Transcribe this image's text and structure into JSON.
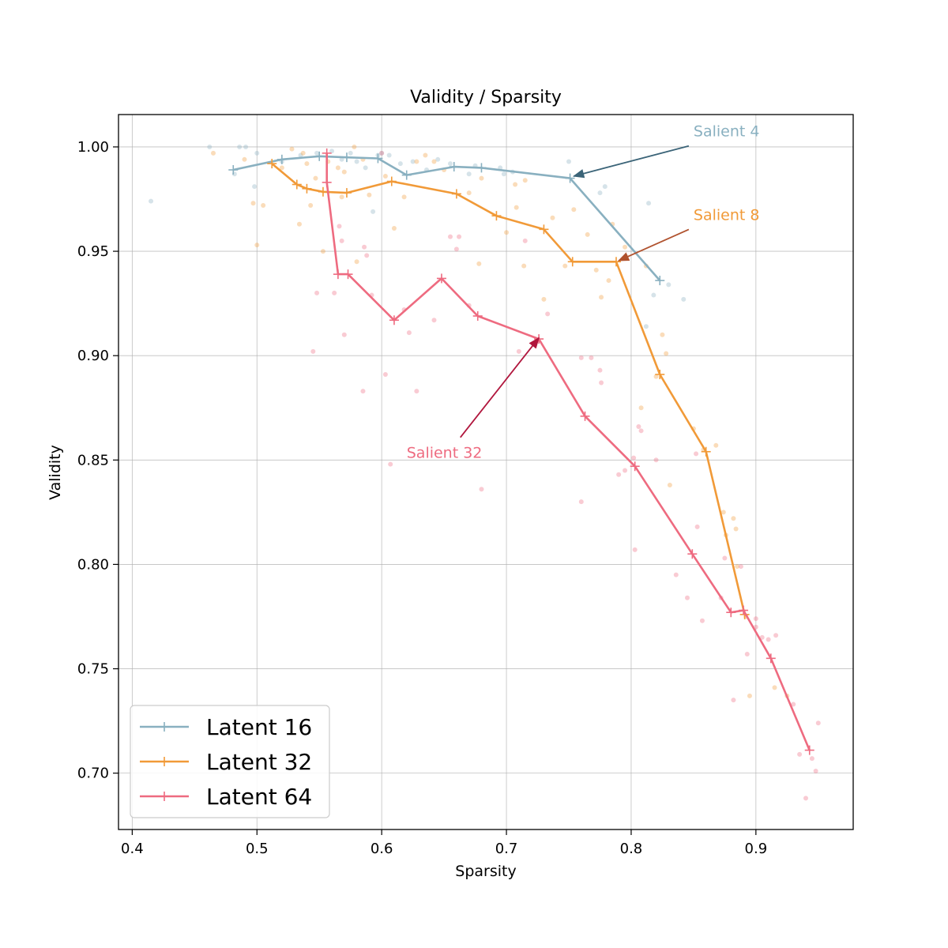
{
  "chart_data": {
    "type": "line",
    "title": "Validity / Sparsity",
    "xlabel": "Sparsity",
    "ylabel": "Validity",
    "xlim": [
      0.389,
      0.978
    ],
    "ylim": [
      0.673,
      1.0155
    ],
    "xticks": [
      0.4,
      0.5,
      0.6,
      0.7,
      0.8,
      0.9
    ],
    "xtick_labels": [
      "0.4",
      "0.5",
      "0.6",
      "0.7",
      "0.8",
      "0.9"
    ],
    "yticks": [
      0.7,
      0.75,
      0.8,
      0.85,
      0.9,
      0.95,
      1.0
    ],
    "ytick_labels": [
      "0.70",
      "0.75",
      "0.80",
      "0.85",
      "0.90",
      "0.95",
      "1.00"
    ],
    "grid": true,
    "legend_position": "bottom-left",
    "series": [
      {
        "name": "Latent 16",
        "color": "#89b0c0",
        "marker": "plus",
        "line": [
          [
            0.481,
            0.989
          ],
          [
            0.52,
            0.994
          ],
          [
            0.55,
            0.9955
          ],
          [
            0.572,
            0.995
          ],
          [
            0.597,
            0.9945
          ],
          [
            0.62,
            0.9865
          ],
          [
            0.658,
            0.9905
          ],
          [
            0.68,
            0.99
          ],
          [
            0.751,
            0.985
          ],
          [
            0.823,
            0.936
          ]
        ],
        "scatter": [
          [
            0.415,
            0.974
          ],
          [
            0.462,
            1.0
          ],
          [
            0.482,
            0.987
          ],
          [
            0.486,
            1.0
          ],
          [
            0.491,
            1.0
          ],
          [
            0.498,
            0.981
          ],
          [
            0.5,
            0.997
          ],
          [
            0.52,
            0.993
          ],
          [
            0.535,
            0.996
          ],
          [
            0.548,
            0.997
          ],
          [
            0.56,
            0.998
          ],
          [
            0.568,
            0.994
          ],
          [
            0.575,
            0.997
          ],
          [
            0.58,
            0.993
          ],
          [
            0.587,
            0.99
          ],
          [
            0.593,
            0.969
          ],
          [
            0.597,
            0.996
          ],
          [
            0.6,
            0.997
          ],
          [
            0.606,
            0.996
          ],
          [
            0.615,
            0.992
          ],
          [
            0.625,
            0.993
          ],
          [
            0.636,
            0.989
          ],
          [
            0.645,
            0.994
          ],
          [
            0.655,
            0.992
          ],
          [
            0.67,
            0.987
          ],
          [
            0.675,
            0.991
          ],
          [
            0.695,
            0.99
          ],
          [
            0.698,
            0.987
          ],
          [
            0.705,
            0.988
          ],
          [
            0.75,
            0.993
          ],
          [
            0.775,
            0.978
          ],
          [
            0.779,
            0.981
          ],
          [
            0.814,
            0.973
          ],
          [
            0.812,
            0.914
          ],
          [
            0.818,
            0.929
          ],
          [
            0.83,
            0.934
          ],
          [
            0.842,
            0.927
          ]
        ]
      },
      {
        "name": "Latent 32",
        "color": "#f19a38",
        "marker": "plus",
        "line": [
          [
            0.512,
            0.992
          ],
          [
            0.532,
            0.982
          ],
          [
            0.54,
            0.98
          ],
          [
            0.553,
            0.9785
          ],
          [
            0.572,
            0.978
          ],
          [
            0.608,
            0.9835
          ],
          [
            0.66,
            0.9775
          ],
          [
            0.692,
            0.967
          ],
          [
            0.73,
            0.9605
          ],
          [
            0.753,
            0.945
          ],
          [
            0.788,
            0.945
          ],
          [
            0.823,
            0.891
          ],
          [
            0.86,
            0.854
          ],
          [
            0.891,
            0.776
          ]
        ],
        "scatter": [
          [
            0.465,
            0.997
          ],
          [
            0.49,
            0.994
          ],
          [
            0.497,
            0.973
          ],
          [
            0.5,
            0.953
          ],
          [
            0.505,
            0.972
          ],
          [
            0.52,
            0.99
          ],
          [
            0.528,
            0.999
          ],
          [
            0.534,
            0.963
          ],
          [
            0.537,
            0.997
          ],
          [
            0.54,
            0.992
          ],
          [
            0.543,
            0.972
          ],
          [
            0.547,
            0.985
          ],
          [
            0.553,
            0.95
          ],
          [
            0.557,
            0.993
          ],
          [
            0.565,
            0.99
          ],
          [
            0.568,
            0.976
          ],
          [
            0.57,
            0.988
          ],
          [
            0.578,
            1.0
          ],
          [
            0.58,
            0.945
          ],
          [
            0.585,
            0.994
          ],
          [
            0.59,
            0.977
          ],
          [
            0.603,
            0.986
          ],
          [
            0.61,
            0.961
          ],
          [
            0.618,
            0.976
          ],
          [
            0.628,
            0.993
          ],
          [
            0.635,
            0.996
          ],
          [
            0.642,
            0.993
          ],
          [
            0.65,
            0.989
          ],
          [
            0.67,
            0.978
          ],
          [
            0.678,
            0.944
          ],
          [
            0.68,
            0.985
          ],
          [
            0.7,
            0.959
          ],
          [
            0.707,
            0.982
          ],
          [
            0.708,
            0.971
          ],
          [
            0.714,
            0.943
          ],
          [
            0.715,
            0.984
          ],
          [
            0.73,
            0.927
          ],
          [
            0.737,
            0.966
          ],
          [
            0.747,
            0.943
          ],
          [
            0.754,
            0.97
          ],
          [
            0.765,
            0.958
          ],
          [
            0.772,
            0.941
          ],
          [
            0.776,
            0.928
          ],
          [
            0.782,
            0.936
          ],
          [
            0.785,
            0.963
          ],
          [
            0.795,
            0.952
          ],
          [
            0.808,
            0.875
          ],
          [
            0.812,
            0.943
          ],
          [
            0.82,
            0.89
          ],
          [
            0.825,
            0.91
          ],
          [
            0.828,
            0.901
          ],
          [
            0.831,
            0.838
          ],
          [
            0.85,
            0.865
          ],
          [
            0.858,
            0.855
          ],
          [
            0.868,
            0.857
          ],
          [
            0.874,
            0.825
          ],
          [
            0.876,
            0.814
          ],
          [
            0.882,
            0.822
          ],
          [
            0.884,
            0.817
          ],
          [
            0.885,
            0.799
          ],
          [
            0.895,
            0.737
          ],
          [
            0.892,
            0.775
          ],
          [
            0.915,
            0.741
          ],
          [
            0.925,
            0.737
          ]
        ]
      },
      {
        "name": "Latent 64",
        "color": "#ee6b80",
        "marker": "plus",
        "line": [
          [
            0.556,
            0.997
          ],
          [
            0.556,
            0.983
          ],
          [
            0.565,
            0.939
          ],
          [
            0.573,
            0.939
          ],
          [
            0.61,
            0.917
          ],
          [
            0.648,
            0.937
          ],
          [
            0.677,
            0.919
          ],
          [
            0.726,
            0.908
          ],
          [
            0.763,
            0.871
          ],
          [
            0.803,
            0.847
          ],
          [
            0.849,
            0.805
          ],
          [
            0.88,
            0.777
          ],
          [
            0.89,
            0.778
          ],
          [
            0.912,
            0.755
          ],
          [
            0.943,
            0.711
          ]
        ],
        "scatter": [
          [
            0.545,
            0.902
          ],
          [
            0.548,
            0.93
          ],
          [
            0.562,
            0.93
          ],
          [
            0.566,
            0.962
          ],
          [
            0.568,
            0.955
          ],
          [
            0.57,
            0.91
          ],
          [
            0.585,
            0.883
          ],
          [
            0.586,
            0.952
          ],
          [
            0.588,
            0.948
          ],
          [
            0.592,
            0.929
          ],
          [
            0.6,
            0.997
          ],
          [
            0.603,
            0.891
          ],
          [
            0.607,
            0.848
          ],
          [
            0.618,
            0.922
          ],
          [
            0.622,
            0.911
          ],
          [
            0.628,
            0.883
          ],
          [
            0.642,
            0.917
          ],
          [
            0.655,
            0.957
          ],
          [
            0.66,
            0.951
          ],
          [
            0.662,
            0.957
          ],
          [
            0.67,
            0.924
          ],
          [
            0.68,
            0.836
          ],
          [
            0.71,
            0.902
          ],
          [
            0.715,
            0.955
          ],
          [
            0.733,
            0.92
          ],
          [
            0.76,
            0.899
          ],
          [
            0.76,
            0.83
          ],
          [
            0.768,
            0.899
          ],
          [
            0.775,
            0.893
          ],
          [
            0.776,
            0.887
          ],
          [
            0.79,
            0.843
          ],
          [
            0.795,
            0.845
          ],
          [
            0.802,
            0.851
          ],
          [
            0.803,
            0.807
          ],
          [
            0.806,
            0.866
          ],
          [
            0.808,
            0.864
          ],
          [
            0.82,
            0.85
          ],
          [
            0.836,
            0.795
          ],
          [
            0.845,
            0.784
          ],
          [
            0.852,
            0.853
          ],
          [
            0.853,
            0.818
          ],
          [
            0.857,
            0.773
          ],
          [
            0.872,
            0.784
          ],
          [
            0.875,
            0.803
          ],
          [
            0.882,
            0.735
          ],
          [
            0.888,
            0.799
          ],
          [
            0.893,
            0.757
          ],
          [
            0.9,
            0.77
          ],
          [
            0.9,
            0.774
          ],
          [
            0.905,
            0.765
          ],
          [
            0.91,
            0.764
          ],
          [
            0.916,
            0.766
          ],
          [
            0.93,
            0.733
          ],
          [
            0.935,
            0.709
          ],
          [
            0.94,
            0.688
          ],
          [
            0.945,
            0.707
          ],
          [
            0.948,
            0.701
          ],
          [
            0.95,
            0.724
          ]
        ]
      }
    ],
    "annotations": [
      {
        "text": "Salient 4",
        "color": "#89b0c0",
        "arrow_color": "#3b6478",
        "text_xy": [
          0.85,
          1.005
        ],
        "point_xy": [
          0.754,
          0.986
        ]
      },
      {
        "text": "Salient 8",
        "color": "#f19a38",
        "arrow_color": "#b0522e",
        "text_xy": [
          0.85,
          0.965
        ],
        "point_xy": [
          0.79,
          0.9455
        ]
      },
      {
        "text": "Salient 32",
        "color": "#ee6b80",
        "arrow_color": "#b0153c",
        "text_xy": [
          0.62,
          0.851
        ],
        "point_xy": [
          0.726,
          0.9085
        ]
      }
    ]
  }
}
